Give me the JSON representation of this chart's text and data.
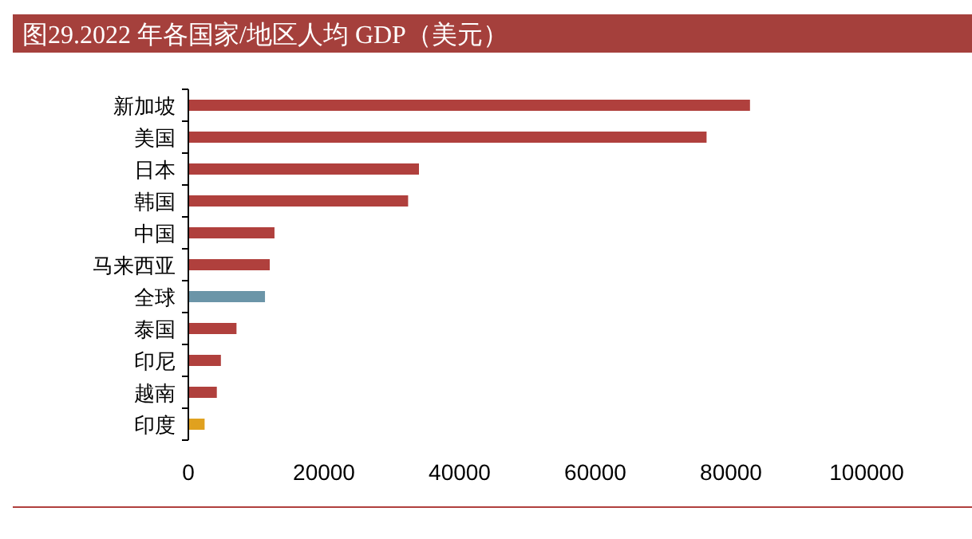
{
  "chart_data": {
    "type": "bar",
    "orientation": "horizontal",
    "title": "图29.2022 年各国家/地区人均 GDP（美元）",
    "categories": [
      "新加坡",
      "美国",
      "日本",
      "韩国",
      "中国",
      "马来西亚",
      "全球",
      "泰国",
      "印尼",
      "越南",
      "印度"
    ],
    "values": [
      82800,
      76400,
      34000,
      32400,
      12700,
      12000,
      11300,
      7100,
      4800,
      4200,
      2400
    ],
    "colors": [
      "#b0403d",
      "#b0403d",
      "#b0403d",
      "#b0403d",
      "#b0403d",
      "#b0403d",
      "#6b95a8",
      "#b0403d",
      "#b0403d",
      "#b0403d",
      "#e0a11f"
    ],
    "xlim": [
      0,
      100000
    ],
    "xticks": [
      0,
      20000,
      40000,
      60000,
      80000,
      100000
    ],
    "grid": false
  }
}
